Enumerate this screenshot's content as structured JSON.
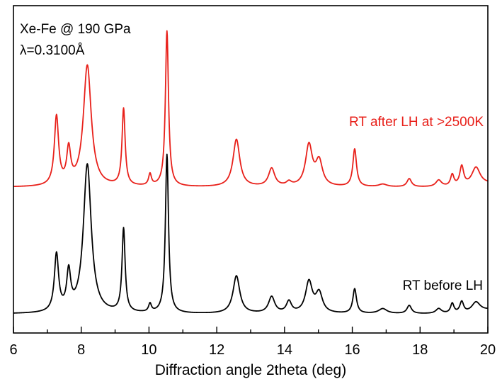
{
  "chart_data": {
    "type": "line",
    "title": "",
    "xlabel": "Diffraction angle 2theta (deg)",
    "ylabel": "",
    "xlim": [
      6,
      20
    ],
    "ylim": [
      0,
      1
    ],
    "x_ticks": [
      "6",
      "8",
      "10",
      "12",
      "14",
      "16",
      "18",
      "20"
    ],
    "annotations": {
      "composition": "Xe-Fe @ 190 GPa",
      "wavelength": "λ=0.3100Å"
    },
    "colors": {
      "after": "#e8201a",
      "before": "#000000",
      "axis": "#000000"
    },
    "series": [
      {
        "name": "RT after LH at >2500K",
        "color": "#e8201a",
        "baseline": 0.445,
        "end_value": 0.455,
        "peaks": [
          {
            "x": 7.27,
            "h": 0.21,
            "w": 0.075
          },
          {
            "x": 7.63,
            "h": 0.105,
            "w": 0.07
          },
          {
            "x": 8.18,
            "h": 0.37,
            "w": 0.14
          },
          {
            "x": 9.25,
            "h": 0.235,
            "w": 0.055
          },
          {
            "x": 10.03,
            "h": 0.035,
            "w": 0.05
          },
          {
            "x": 10.53,
            "h": 0.475,
            "w": 0.055
          },
          {
            "x": 12.58,
            "h": 0.145,
            "w": 0.12
          },
          {
            "x": 13.62,
            "h": 0.055,
            "w": 0.11
          },
          {
            "x": 14.13,
            "h": 0.012,
            "w": 0.09
          },
          {
            "x": 14.72,
            "h": 0.125,
            "w": 0.12
          },
          {
            "x": 15.02,
            "h": 0.075,
            "w": 0.12
          },
          {
            "x": 16.07,
            "h": 0.115,
            "w": 0.065
          },
          {
            "x": 16.9,
            "h": 0.008,
            "w": 0.15
          },
          {
            "x": 17.68,
            "h": 0.025,
            "w": 0.08
          },
          {
            "x": 18.55,
            "h": 0.02,
            "w": 0.1
          },
          {
            "x": 18.95,
            "h": 0.035,
            "w": 0.06
          },
          {
            "x": 19.23,
            "h": 0.06,
            "w": 0.07
          },
          {
            "x": 19.65,
            "h": 0.055,
            "w": 0.15
          }
        ]
      },
      {
        "name": "RT before LH",
        "color": "#000000",
        "baseline": 0.058,
        "end_value": 0.07,
        "peaks": [
          {
            "x": 7.27,
            "h": 0.175,
            "w": 0.075
          },
          {
            "x": 7.63,
            "h": 0.115,
            "w": 0.07
          },
          {
            "x": 8.18,
            "h": 0.455,
            "w": 0.14
          },
          {
            "x": 9.25,
            "h": 0.255,
            "w": 0.055
          },
          {
            "x": 10.03,
            "h": 0.025,
            "w": 0.05
          },
          {
            "x": 10.53,
            "h": 0.485,
            "w": 0.055
          },
          {
            "x": 12.58,
            "h": 0.115,
            "w": 0.12
          },
          {
            "x": 13.62,
            "h": 0.05,
            "w": 0.11
          },
          {
            "x": 14.13,
            "h": 0.035,
            "w": 0.09
          },
          {
            "x": 14.72,
            "h": 0.095,
            "w": 0.12
          },
          {
            "x": 15.02,
            "h": 0.06,
            "w": 0.12
          },
          {
            "x": 16.07,
            "h": 0.075,
            "w": 0.065
          },
          {
            "x": 16.9,
            "h": 0.015,
            "w": 0.15
          },
          {
            "x": 17.68,
            "h": 0.025,
            "w": 0.08
          },
          {
            "x": 18.55,
            "h": 0.015,
            "w": 0.1
          },
          {
            "x": 18.95,
            "h": 0.03,
            "w": 0.06
          },
          {
            "x": 19.23,
            "h": 0.035,
            "w": 0.07
          },
          {
            "x": 19.65,
            "h": 0.03,
            "w": 0.15
          }
        ]
      }
    ]
  }
}
